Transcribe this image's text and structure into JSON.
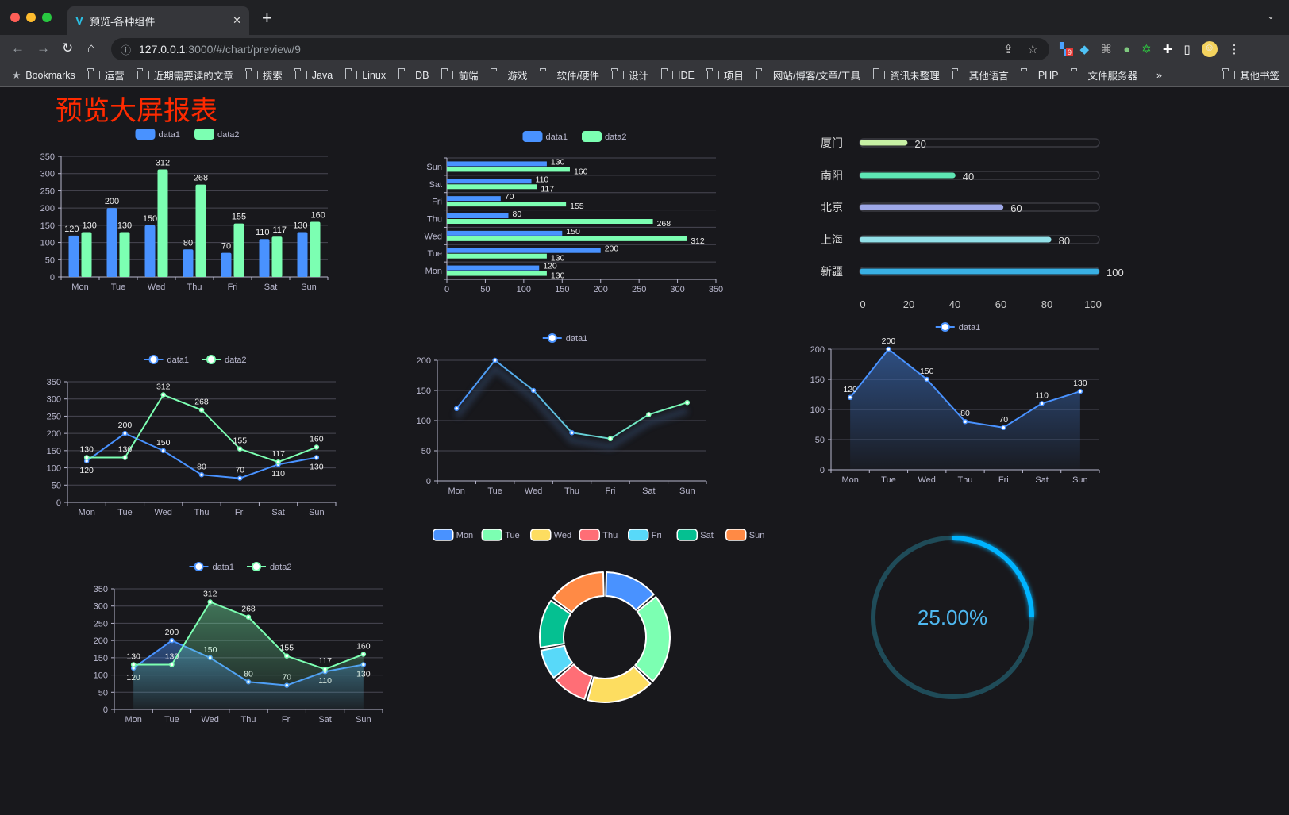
{
  "browser": {
    "tab_title": "预览-各种组件",
    "url_host": "127.0.0.1",
    "url_path": ":3000/#/chart/preview/9",
    "extension_badge": "9",
    "bookmarks": [
      "Bookmarks",
      "运营",
      "近期需要读的文章",
      "搜索",
      "Java",
      "Linux",
      "DB",
      "前端",
      "游戏",
      "软件/硬件",
      "设计",
      "IDE",
      "项目",
      "网站/博客/文章/工具",
      "资讯未整理",
      "其他语言",
      "PHP",
      "文件服务器"
    ],
    "more": "»",
    "other_bookmarks": "其他书签"
  },
  "page": {
    "title": "预览大屏报表",
    "title_color": "#ff2a00"
  },
  "colors": {
    "data1": "#4992ff",
    "data2": "#7cffb2",
    "axis": "#b9b8ce",
    "grid": "#484753"
  },
  "chart_data": [
    {
      "type": "bar",
      "orientation": "vertical",
      "categories": [
        "Mon",
        "Tue",
        "Wed",
        "Thu",
        "Fri",
        "Sat",
        "Sun"
      ],
      "series": [
        {
          "name": "data1",
          "values": [
            120,
            200,
            150,
            80,
            70,
            110,
            130
          ]
        },
        {
          "name": "data2",
          "values": [
            130,
            130,
            312,
            268,
            155,
            117,
            160
          ]
        }
      ],
      "ylim": [
        0,
        350
      ],
      "yticks": [
        0,
        50,
        100,
        150,
        200,
        250,
        300,
        350
      ],
      "legend": "top",
      "grid": true
    },
    {
      "type": "bar",
      "orientation": "horizontal",
      "categories": [
        "Mon",
        "Tue",
        "Wed",
        "Thu",
        "Fri",
        "Sat",
        "Sun"
      ],
      "series": [
        {
          "name": "data1",
          "values": [
            120,
            200,
            150,
            80,
            70,
            110,
            130
          ]
        },
        {
          "name": "data2",
          "values": [
            130,
            130,
            312,
            268,
            155,
            117,
            160
          ]
        }
      ],
      "xlim": [
        0,
        350
      ],
      "xticks": [
        0,
        50,
        100,
        150,
        200,
        250,
        300,
        350
      ],
      "legend": "top",
      "grid": true
    },
    {
      "type": "bar",
      "orientation": "progress",
      "categories": [
        "厦门",
        "南阳",
        "北京",
        "上海",
        "新疆"
      ],
      "values": [
        20,
        40,
        60,
        80,
        100
      ],
      "colors": [
        "#c7f0a4",
        "#5ee6b4",
        "#9ea8e8",
        "#92e0e8",
        "#39b0e4"
      ],
      "xlim": [
        0,
        100
      ],
      "xticks": [
        0,
        20,
        40,
        60,
        80,
        100
      ]
    },
    {
      "type": "line",
      "categories": [
        "Mon",
        "Tue",
        "Wed",
        "Thu",
        "Fri",
        "Sat",
        "Sun"
      ],
      "series": [
        {
          "name": "data1",
          "values": [
            120,
            200,
            150,
            80,
            70,
            110,
            130
          ]
        },
        {
          "name": "data2",
          "values": [
            130,
            130,
            312,
            268,
            155,
            117,
            160
          ]
        }
      ],
      "ylim": [
        0,
        350
      ],
      "yticks": [
        0,
        50,
        100,
        150,
        200,
        250,
        300,
        350
      ],
      "legend": "top",
      "grid": true,
      "labels": true
    },
    {
      "type": "line",
      "categories": [
        "Mon",
        "Tue",
        "Wed",
        "Thu",
        "Fri",
        "Sat",
        "Sun"
      ],
      "series": [
        {
          "name": "data1",
          "values": [
            120,
            200,
            150,
            80,
            70,
            110,
            130
          ]
        }
      ],
      "ylim": [
        0,
        200
      ],
      "yticks": [
        0,
        50,
        100,
        150,
        200
      ],
      "legend": "top",
      "grid": true,
      "labels": false,
      "gradient": [
        "#4992ff",
        "#7cffb2"
      ]
    },
    {
      "type": "area",
      "categories": [
        "Mon",
        "Tue",
        "Wed",
        "Thu",
        "Fri",
        "Sat",
        "Sun"
      ],
      "series": [
        {
          "name": "data1",
          "values": [
            120,
            200,
            150,
            80,
            70,
            110,
            130
          ]
        }
      ],
      "ylim": [
        0,
        200
      ],
      "yticks": [
        0,
        50,
        100,
        150,
        200
      ],
      "legend": "top",
      "grid": true,
      "labels": true
    },
    {
      "type": "area",
      "categories": [
        "Mon",
        "Tue",
        "Wed",
        "Thu",
        "Fri",
        "Sat",
        "Sun"
      ],
      "series": [
        {
          "name": "data1",
          "values": [
            120,
            200,
            150,
            80,
            70,
            110,
            130
          ]
        },
        {
          "name": "data2",
          "values": [
            130,
            130,
            312,
            268,
            155,
            117,
            160
          ]
        }
      ],
      "ylim": [
        0,
        350
      ],
      "yticks": [
        0,
        50,
        100,
        150,
        200,
        250,
        300,
        350
      ],
      "legend": "top",
      "grid": true,
      "labels": true
    },
    {
      "type": "pie",
      "variant": "donut",
      "categories": [
        "Mon",
        "Tue",
        "Wed",
        "Thu",
        "Fri",
        "Sat",
        "Sun"
      ],
      "values": [
        120,
        200,
        150,
        80,
        70,
        110,
        130
      ],
      "colors": [
        "#4992ff",
        "#7cffb2",
        "#fddd60",
        "#ff6e76",
        "#58d9f9",
        "#05c091",
        "#ff8a45"
      ],
      "legend": "top"
    },
    {
      "type": "gauge",
      "value": 25,
      "label": "25.00%",
      "track_color": "#1f4b58",
      "fill_color": "#00b4ff"
    }
  ]
}
